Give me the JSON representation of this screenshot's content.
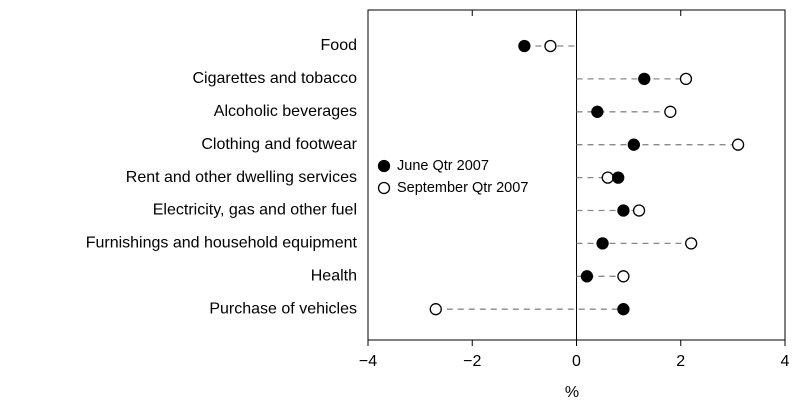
{
  "chart_data": {
    "type": "dot",
    "x_label": "%",
    "categories": [
      "Food",
      "Cigarettes and tobacco",
      "Alcoholic beverages",
      "Clothing and footwear",
      "Rent and other dwelling services",
      "Electricity, gas and other fuel",
      "Furnishings and household equipment",
      "Health",
      "Purchase of vehicles"
    ],
    "series": [
      {
        "name": "June Qtr 2007",
        "color": "#000000",
        "values": [
          -1.0,
          1.3,
          0.4,
          1.1,
          0.8,
          0.9,
          0.5,
          0.2,
          0.9
        ]
      },
      {
        "name": "September Qtr 2007",
        "color": "#ffffff",
        "values": [
          -0.5,
          2.1,
          1.8,
          3.1,
          0.6,
          1.2,
          2.2,
          0.9,
          -2.7
        ]
      }
    ],
    "xlim": [
      -4,
      4
    ],
    "xticks": [
      {
        "value": -4,
        "label": "−4"
      },
      {
        "value": -2,
        "label": "−2"
      },
      0,
      2,
      4
    ],
    "legend": "center-left",
    "connector_color": "#888888"
  }
}
